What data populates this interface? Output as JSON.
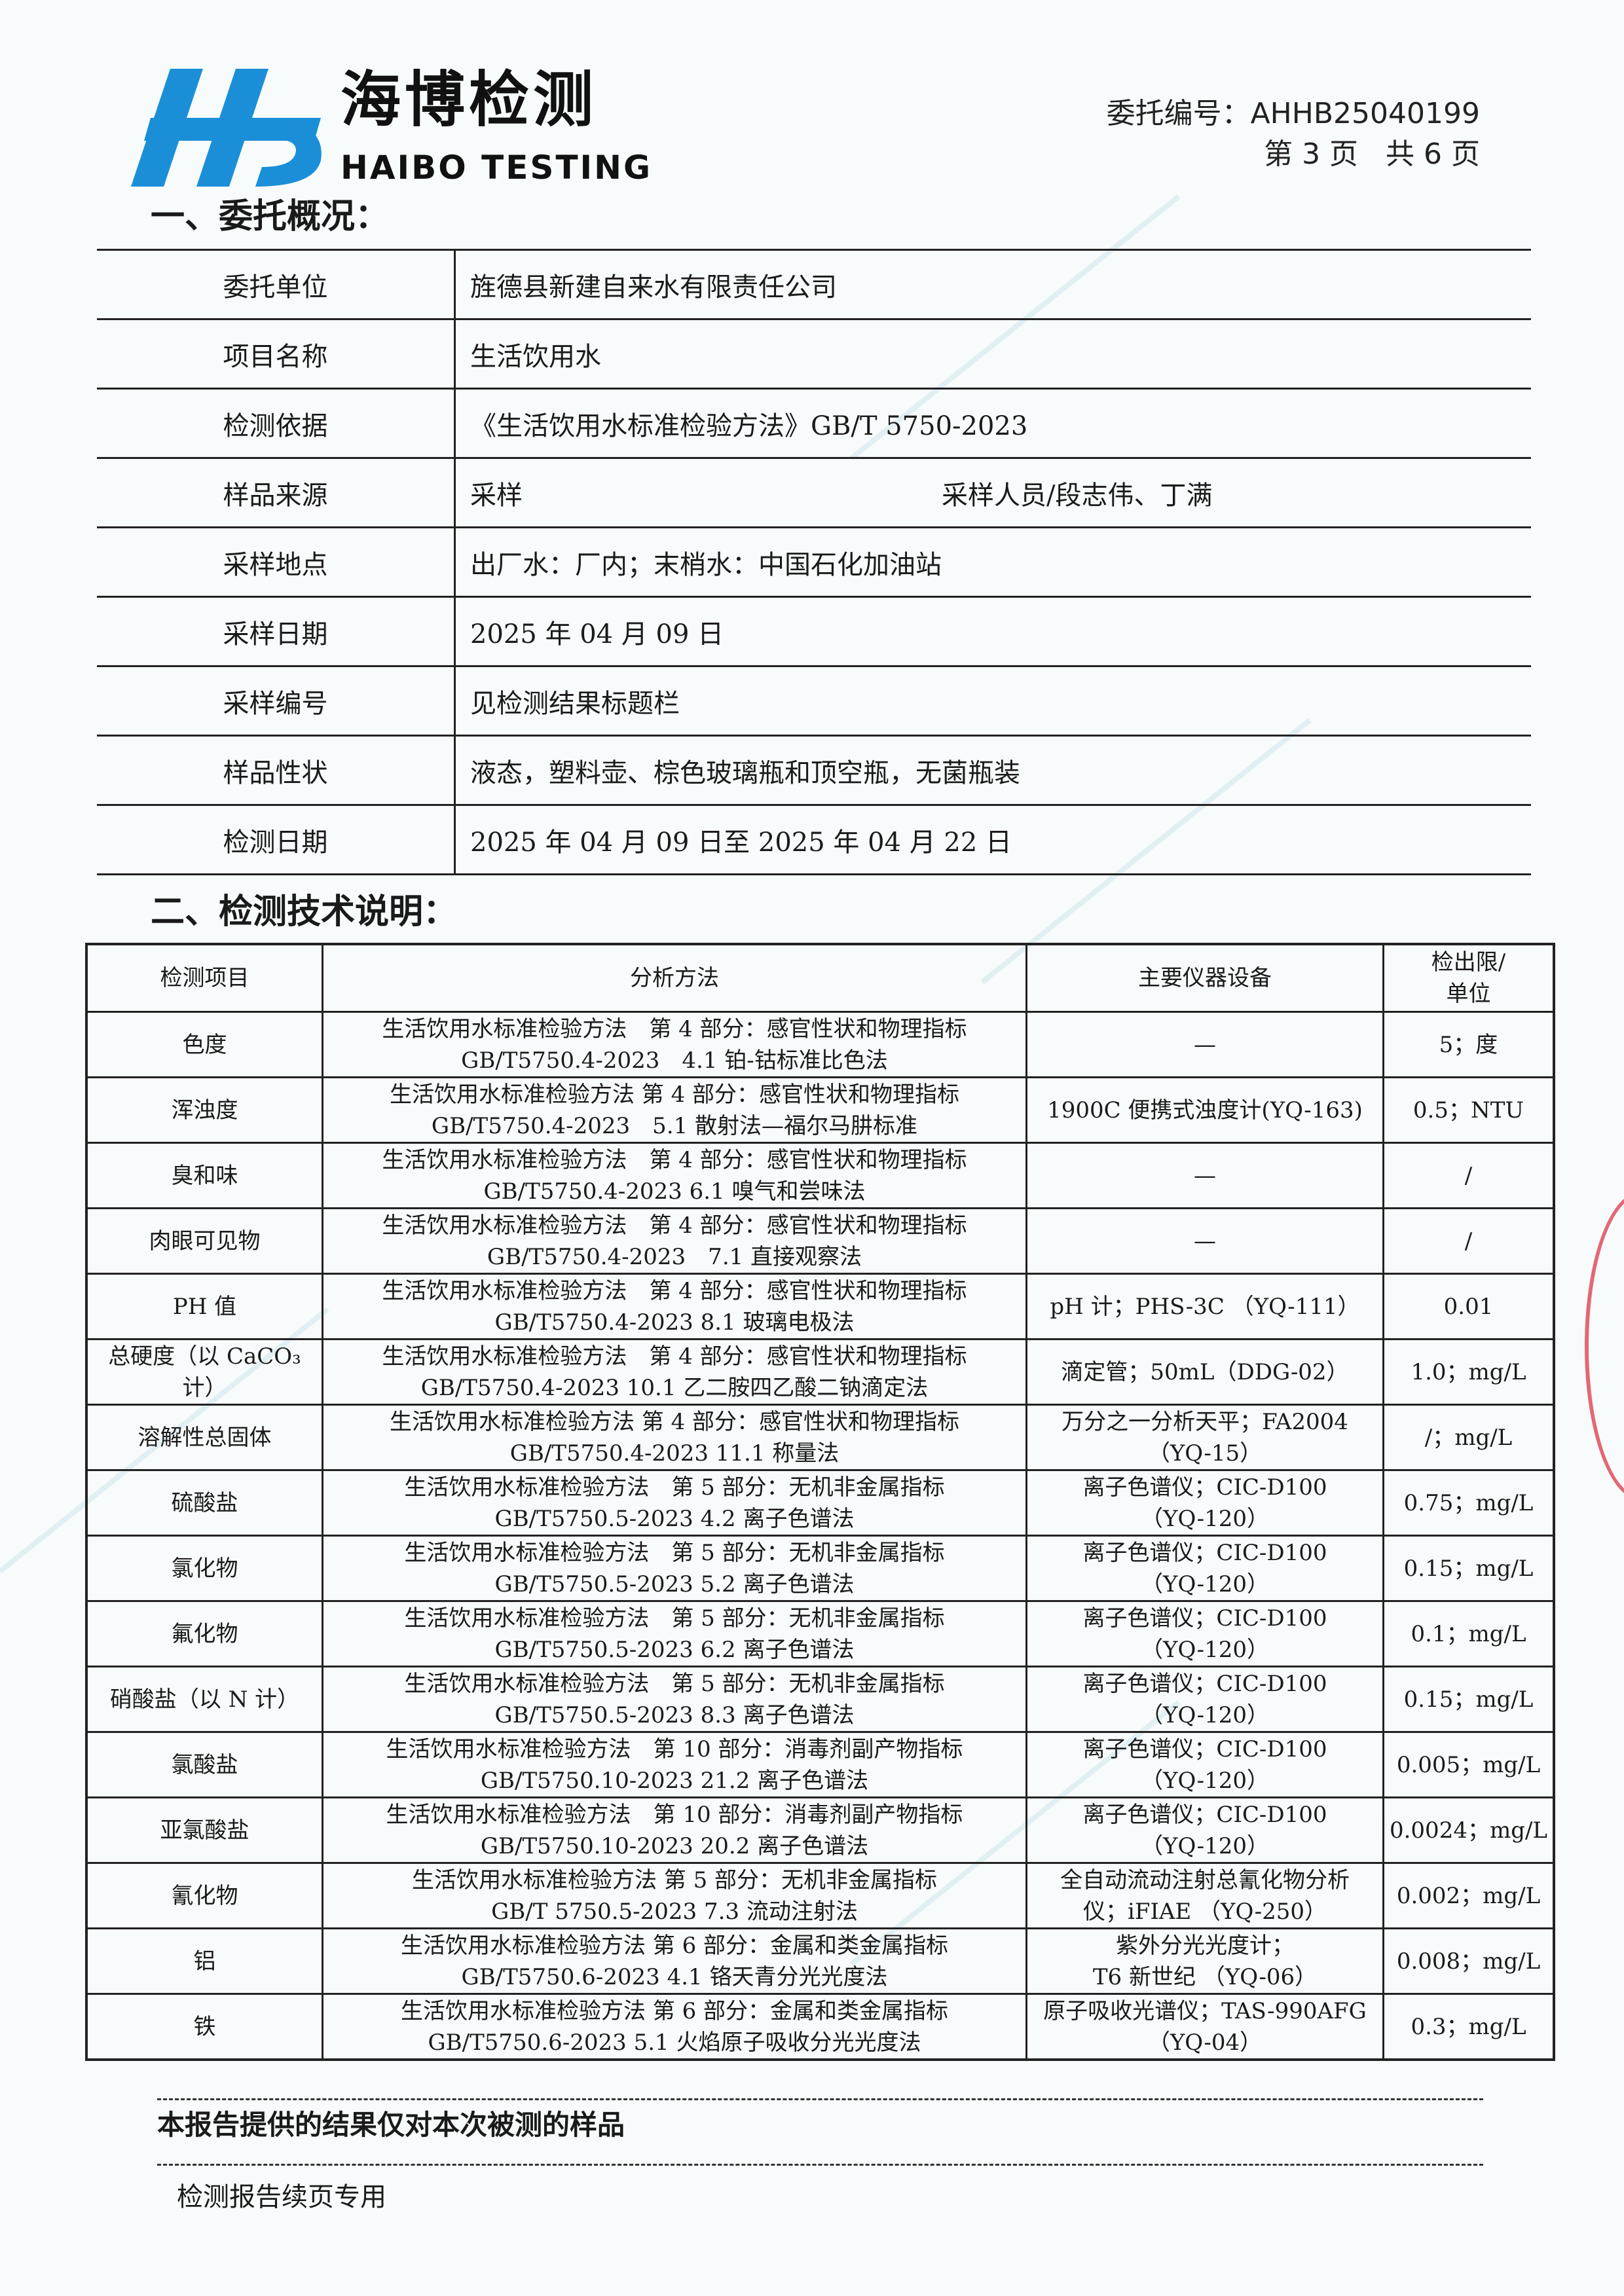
{
  "logo": {
    "cn": "海博检测",
    "en": "HAIBO TESTING",
    "brand_color": "#1a8fd8"
  },
  "header": {
    "report_no": "委托编号：AHHB25040199",
    "page": "第 3 页   共 6 页"
  },
  "section1": {
    "title": "一、委托概况：",
    "rows": [
      {
        "label": "委托单位",
        "value": "旌德县新建自来水有限责任公司"
      },
      {
        "label": "项目名称",
        "value": "生活饮用水"
      },
      {
        "label": "检测依据",
        "value": "《生活饮用水标准检验方法》GB/T 5750-2023"
      },
      {
        "label": "样品来源",
        "value": "采样",
        "extra": "采样人员/段志伟、丁满"
      },
      {
        "label": "采样地点",
        "value": "出厂水：厂内；末梢水：中国石化加油站"
      },
      {
        "label": "采样日期",
        "value": "2025 年 04 月 09 日"
      },
      {
        "label": "采样编号",
        "value": "见检测结果标题栏"
      },
      {
        "label": "样品性状",
        "value": "液态，塑料壶、棕色玻璃瓶和顶空瓶，无菌瓶装"
      },
      {
        "label": "检测日期",
        "value": "2025 年 04 月 09 日至 2025 年 04 月 22 日"
      }
    ]
  },
  "section2": {
    "title": "二、检测技术说明：",
    "headers": [
      "检测项目",
      "分析方法",
      "主要仪器设备",
      "检出限/\n单位"
    ],
    "rows": [
      {
        "item": "色度",
        "method1": "生活饮用水标准检验方法　第 4 部分：感官性状和物理指标",
        "method2": "GB/T5750.4-2023　4.1 铂-钴标准比色法",
        "equip1": "—",
        "equip2": "",
        "limit": "5；度"
      },
      {
        "item": "浑浊度",
        "method1": "生活饮用水标准检验方法 第 4 部分：感官性状和物理指标",
        "method2": "GB/T5750.4-2023　5.1 散射法—福尔马肼标准",
        "equip1": "1900C 便携式浊度计(YQ-163)",
        "equip2": "",
        "limit": "0.5；NTU"
      },
      {
        "item": "臭和味",
        "method1": "生活饮用水标准检验方法　第 4 部分：感官性状和物理指标",
        "method2": "GB/T5750.4-2023 6.1 嗅气和尝味法",
        "equip1": "—",
        "equip2": "",
        "limit": "/"
      },
      {
        "item": "肉眼可见物",
        "method1": "生活饮用水标准检验方法　第 4 部分：感官性状和物理指标",
        "method2": "GB/T5750.4-2023　7.1 直接观察法",
        "equip1": "—",
        "equip2": "",
        "limit": "/"
      },
      {
        "item": "PH 值",
        "method1": "生活饮用水标准检验方法　第 4 部分：感官性状和物理指标",
        "method2": "GB/T5750.4-2023 8.1 玻璃电极法",
        "equip1": "pH 计；PHS-3C （YQ-111）",
        "equip2": "",
        "limit": "0.01"
      },
      {
        "item": "总硬度（以 CaCO₃计）",
        "method1": "生活饮用水标准检验方法　第 4 部分：感官性状和物理指标",
        "method2": "GB/T5750.4-2023 10.1 乙二胺四乙酸二钠滴定法",
        "equip1": "滴定管；50mL（DDG-02）",
        "equip2": "",
        "limit": "1.0；mg/L"
      },
      {
        "item": "溶解性总固体",
        "method1": "生活饮用水标准检验方法 第 4 部分：感官性状和物理指标",
        "method2": "GB/T5750.4-2023 11.1 称量法",
        "equip1": "万分之一分析天平；FA2004",
        "equip2": "（YQ-15）",
        "limit": "/；mg/L"
      },
      {
        "item": "硫酸盐",
        "method1": "生活饮用水标准检验方法　第 5 部分：无机非金属指标",
        "method2": "GB/T5750.5-2023 4.2 离子色谱法",
        "equip1": "离子色谱仪；CIC-D100",
        "equip2": "（YQ-120）",
        "limit": "0.75；mg/L"
      },
      {
        "item": "氯化物",
        "method1": "生活饮用水标准检验方法　第 5 部分：无机非金属指标",
        "method2": "GB/T5750.5-2023 5.2 离子色谱法",
        "equip1": "离子色谱仪；CIC-D100",
        "equip2": "（YQ-120）",
        "limit": "0.15；mg/L"
      },
      {
        "item": "氟化物",
        "method1": "生活饮用水标准检验方法　第 5 部分：无机非金属指标",
        "method2": "GB/T5750.5-2023 6.2 离子色谱法",
        "equip1": "离子色谱仪；CIC-D100",
        "equip2": "（YQ-120）",
        "limit": "0.1；mg/L"
      },
      {
        "item": "硝酸盐（以 N 计）",
        "method1": "生活饮用水标准检验方法　第 5 部分：无机非金属指标",
        "method2": "GB/T5750.5-2023 8.3 离子色谱法",
        "equip1": "离子色谱仪；CIC-D100",
        "equip2": "（YQ-120）",
        "limit": "0.15；mg/L"
      },
      {
        "item": "氯酸盐",
        "method1": "生活饮用水标准检验方法　第 10 部分：消毒剂副产物指标",
        "method2": "GB/T5750.10-2023 21.2 离子色谱法",
        "equip1": "离子色谱仪；CIC-D100",
        "equip2": "（YQ-120）",
        "limit": "0.005；mg/L"
      },
      {
        "item": "亚氯酸盐",
        "method1": "生活饮用水标准检验方法　第 10 部分：消毒剂副产物指标",
        "method2": "GB/T5750.10-2023 20.2 离子色谱法",
        "equip1": "离子色谱仪；CIC-D100",
        "equip2": "（YQ-120）",
        "limit": "0.0024；mg/L"
      },
      {
        "item": "氰化物",
        "method1": "生活饮用水标准检验方法 第 5 部分：无机非金属指标",
        "method2": "GB/T 5750.5-2023 7.3 流动注射法",
        "equip1": "全自动流动注射总氰化物分析",
        "equip2": "仪；iFIAE （YQ-250）",
        "limit": "0.002；mg/L"
      },
      {
        "item": "铝",
        "method1": "生活饮用水标准检验方法 第 6 部分：金属和类金属指标",
        "method2": "GB/T5750.6-2023 4.1 铬天青分光光度法",
        "equip1": "紫外分光光度计；",
        "equip2": "T6 新世纪 （YQ-06）",
        "limit": "0.008；mg/L"
      },
      {
        "item": "铁",
        "method1": "生活饮用水标准检验方法 第 6 部分：金属和类金属指标",
        "method2": "GB/T5750.6-2023 5.1 火焰原子吸收分光光度法",
        "equip1": "原子吸收光谱仪；TAS-990AFG",
        "equip2": "（YQ-04）",
        "limit": "0.3；mg/L"
      }
    ]
  },
  "footer": {
    "disclaimer": "本报告提供的结果仅对本次被测的样品",
    "continuation": "检测报告续页专用"
  }
}
